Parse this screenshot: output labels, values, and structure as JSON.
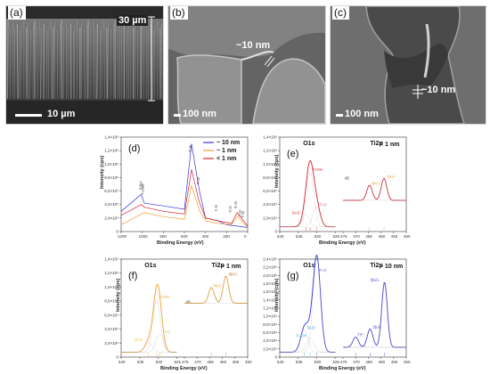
{
  "sem_panels": [
    {
      "label": "(a)",
      "annotation": "30 µm",
      "scale": "10 µm"
    },
    {
      "label": "(b)",
      "annotation": "~10 nm",
      "scale": "100 nm"
    },
    {
      "label": "(c)",
      "annotation": "~10 nm",
      "scale": "100 nm"
    }
  ],
  "colors": {
    "blue": "#3434d8",
    "orange": "#f0a030",
    "red": "#d8202a",
    "yellow": "#e8c81a",
    "gray": "#888888"
  },
  "chart_data": [
    {
      "type": "line",
      "panel": "(d)",
      "xlabel": "Binding Energy (eV)",
      "ylabel": "Intensity (cps)",
      "xlim": [
        1200,
        0
      ],
      "x_ticks": [
        "1200",
        "1000",
        "800",
        "600",
        "400",
        "200",
        "0"
      ],
      "y_ticks": [
        "0",
        "2,0×10⁵",
        "4,0×10⁵",
        "6,0×10⁵",
        "8,0×10⁵",
        "1,0×10⁶",
        "1,2×10⁶",
        "1,4×10⁶"
      ],
      "legend": [
        "~ 10 nm",
        "~ 1 nm",
        "< 1 nm"
      ],
      "peak_labels": [
        "O KLL",
        "Ti LMM",
        "O 1s",
        "Ti 2p",
        "C 1s",
        "Si 2s",
        "Si 2p",
        "Ti 3s",
        "Ti 3p"
      ],
      "series": [
        {
          "name": "~ 10 nm",
          "color": "#3434d8",
          "x": [
            1200,
            1010,
            980,
            800,
            600,
            532,
            460,
            400,
            285,
            200,
            100,
            0
          ],
          "y": [
            0.3,
            0.55,
            0.42,
            0.38,
            0.33,
            1.3,
            0.62,
            0.2,
            0.16,
            0.1,
            0.08,
            0.06
          ]
        },
        {
          "name": "~ 1 nm",
          "color": "#f0a030",
          "x": [
            1200,
            1010,
            980,
            800,
            600,
            532,
            460,
            400,
            285,
            153,
            100,
            0
          ],
          "y": [
            0.1,
            0.26,
            0.28,
            0.22,
            0.18,
            0.68,
            0.32,
            0.16,
            0.12,
            0.1,
            0.22,
            0.06
          ]
        },
        {
          "name": "< 1 nm",
          "color": "#d8202a",
          "x": [
            1200,
            1010,
            980,
            800,
            600,
            532,
            460,
            400,
            285,
            153,
            100,
            0
          ],
          "y": [
            0.24,
            0.4,
            0.36,
            0.3,
            0.26,
            0.92,
            0.44,
            0.2,
            0.16,
            0.12,
            0.28,
            0.08
          ]
        }
      ]
    },
    {
      "type": "line",
      "panel": "(e)",
      "note": "< 1 nm",
      "xlabel": "Binding Energy (eV)",
      "ylabel": "Intensity (cps)",
      "subplots": [
        {
          "title": "O1s",
          "xlim": [
            540,
            525
          ],
          "x_ticks": [
            "540",
            "535",
            "530",
            "525"
          ],
          "peaks": [
            "Ti-OH",
            "Ti-O",
            "Si-O"
          ],
          "peak_x": [
            531.8,
            530.1,
            532.9
          ],
          "peak_height": [
            1.4,
            0.5,
            0.3
          ]
        },
        {
          "title": "Ti2p",
          "xlim": [
            475,
            450
          ],
          "x_ticks": [
            "475",
            "470",
            "465",
            "460",
            "455",
            "450"
          ],
          "scale_factor": "x5",
          "peaks": [
            "2p₁/₂",
            "2p₃/₂"
          ],
          "peak_x": [
            464.5,
            458.8
          ],
          "peak_height": [
            0.55,
            0.8
          ]
        }
      ],
      "y_ticks": [
        "0",
        "2,0×10⁵",
        "4,0×10⁵",
        "6,0×10⁵",
        "8,0×10⁵",
        "1,0×10⁶",
        "1,2×10⁶",
        "1,4×10⁶"
      ],
      "color": "#d8202a"
    },
    {
      "type": "line",
      "panel": "(f)",
      "note": "~ 1 nm",
      "xlabel": "Binding Energy (eV)",
      "ylabel": "Intensity (cps)",
      "subplots": [
        {
          "title": "O1s",
          "xlim": [
            540,
            525
          ],
          "x_ticks": [
            "540",
            "535",
            "530",
            "525"
          ],
          "peaks": [
            "Ti-OH",
            "Ti-O",
            "Si-O"
          ],
          "peak_x": [
            530.4,
            529.6,
            532.6
          ],
          "peak_height": [
            1.3,
            0.45,
            0.25
          ]
        },
        {
          "title": "Ti2p",
          "xlim": [
            475,
            450
          ],
          "x_ticks": [
            "475",
            "470",
            "465",
            "460",
            "455",
            "450"
          ],
          "scale_factor": "x5",
          "peaks": [
            "2p₁/₂",
            "2p₃/₂"
          ],
          "peak_x": [
            464.3,
            458.6
          ],
          "peak_height": [
            0.55,
            0.95
          ]
        }
      ],
      "y_ticks": [
        "0",
        "2,0×10⁵",
        "4,0×10⁵",
        "6,0×10⁵",
        "8,0×10⁵",
        "1,0×10⁶",
        "1,2×10⁶",
        "1,4×10⁶"
      ],
      "color": "#f0a030"
    },
    {
      "type": "line",
      "panel": "(g)",
      "note": "~ 10 nm",
      "xlabel": "Binding Energy (eV)",
      "ylabel": "Intensity (cps)",
      "subplots": [
        {
          "title": "O1s",
          "xlim": [
            540,
            525
          ],
          "x_ticks": [
            "540",
            "535",
            "530",
            "525"
          ],
          "peaks": [
            "Ti-O",
            "Si-O",
            "Ti-OH"
          ],
          "peak_x": [
            530.0,
            533.4,
            531.8
          ],
          "peak_height": [
            2.3,
            0.55,
            0.35
          ]
        },
        {
          "title": "Ti2p",
          "xlim": [
            475,
            450
          ],
          "x_ticks": [
            "475",
            "470",
            "465",
            "460",
            "455",
            "450"
          ],
          "peaks": [
            "Ti³⁺",
            "2p₁/₂",
            "2p₃/₂"
          ],
          "peak_x": [
            470.0,
            464.3,
            458.6
          ],
          "peak_height": [
            0.25,
            0.45,
            1.6
          ]
        }
      ],
      "y_ticks": [
        "0",
        "2,0×10⁵",
        "4,0×10⁵",
        "6,0×10⁵",
        "8,0×10⁵",
        "1,0×10⁶",
        "1,2×10⁶",
        "1,4×10⁶",
        "1,6×10⁶",
        "1,8×10⁶",
        "2,0×10⁶",
        "2,2×10⁶",
        "2,4×10⁶"
      ],
      "color": "#3434d8"
    }
  ]
}
